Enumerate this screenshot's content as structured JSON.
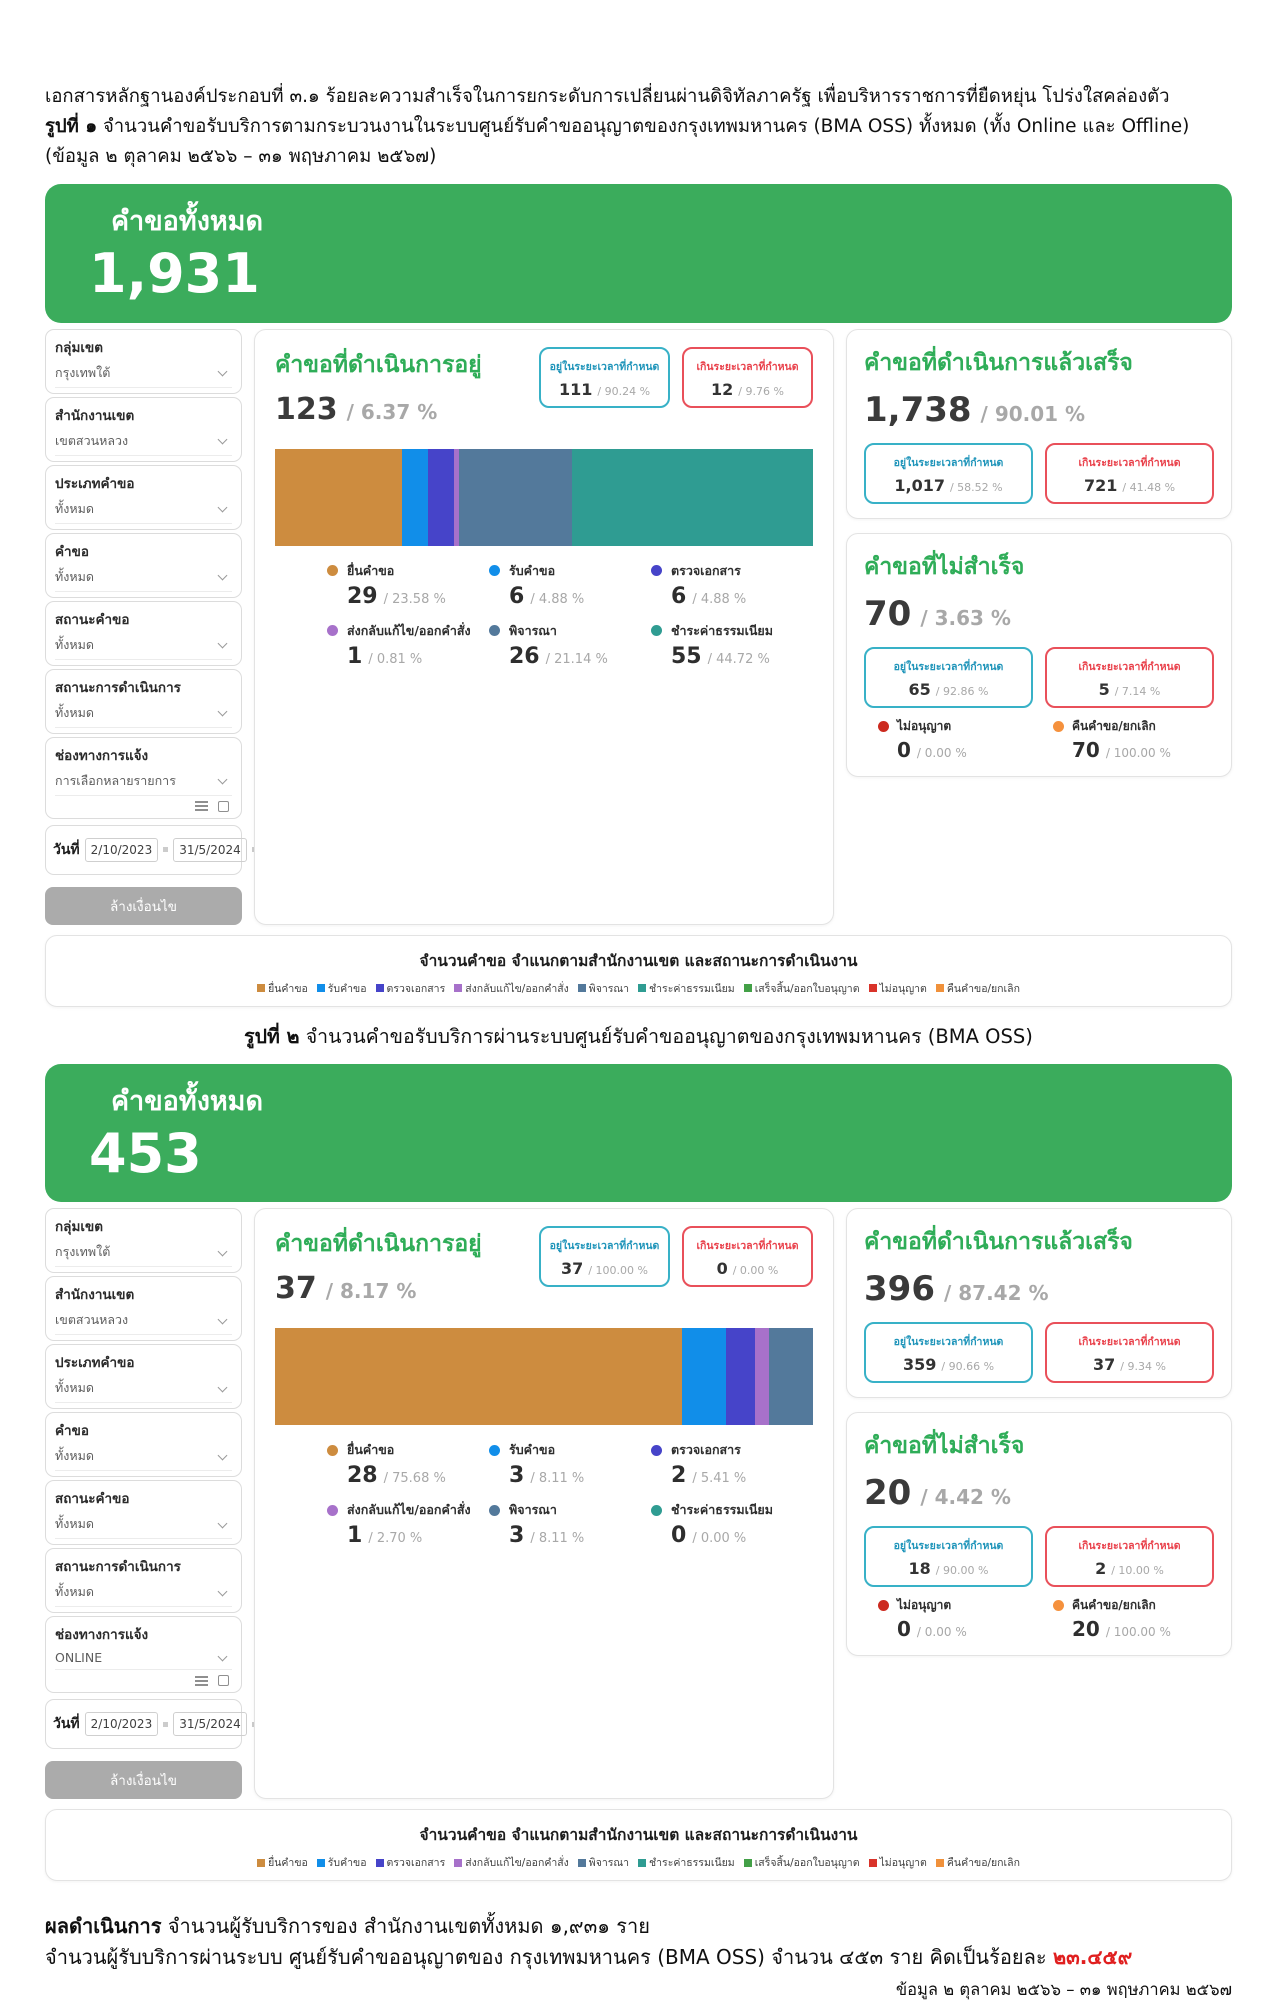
{
  "header": {
    "line1": "เอกสารหลักฐานองค์ประกอบที่ ๓.๑ ร้อยละความสำเร็จในการยกระดับการเปลี่ยนผ่านดิจิทัลภาครัฐ เพื่อบริหารราชการที่ยืดหยุ่น โปร่งใสคล่องตัว",
    "fig1_label": "รูปที่ ๑",
    "fig1_caption": " จำนวนคำขอรับบริการตามกระบวนงานในระบบศูนย์รับคำขออนุญาตของกรุงเทพมหานคร (BMA OSS) ทั้งหมด (ทั้ง Online และ Offline)",
    "fig1_caption2": "(ข้อมูล ๒ ตุลาคม ๒๕๖๖ – ๓๑ พฤษภาคม ๒๕๖๗)",
    "fig2_label": "รูปที่ ๒",
    "fig2_caption": " จำนวนคำขอรับบริการผ่านระบบศูนย์รับคำขออนุญาตของกรุงเทพมหานคร (BMA OSS)"
  },
  "district_chart": {
    "title": "จำนวนคำขอ  จำแนกตามสำนักงานเขต และสถานะการดำเนินงาน",
    "legend": [
      {
        "label": "ยื่นคำขอ",
        "color": "#cd8c3f"
      },
      {
        "label": "รับคำขอ",
        "color": "#118ee9"
      },
      {
        "label": "ตรวจเอกสาร",
        "color": "#4644c9"
      },
      {
        "label": "ส่งกลับแก้ไข/ออกคำสั่ง",
        "color": "#a771ca"
      },
      {
        "label": "พิจารณา",
        "color": "#53799b"
      },
      {
        "label": "ชำระค่าธรรมเนียม",
        "color": "#2f9c92"
      },
      {
        "label": "เสร็จสิ้น/ออกใบอนุญาต",
        "color": "#43a047"
      },
      {
        "label": "ไม่อนุญาต",
        "color": "#d9332a"
      },
      {
        "label": "คืนคำขอ/ยกเลิก",
        "color": "#f0913b"
      }
    ]
  },
  "figures": [
    {
      "banner": {
        "title": "คำขอทั้งหมด",
        "total": "1,931"
      },
      "filters": [
        {
          "label": "กลุ่มเขต",
          "value": "กรุงเทพใต้"
        },
        {
          "label": "สำนักงานเขต",
          "value": "เขตสวนหลวง"
        },
        {
          "label": "ประเภทคำขอ",
          "value": "ทั้งหมด"
        },
        {
          "label": "คำขอ",
          "value": "ทั้งหมด"
        },
        {
          "label": "สถานะคำขอ",
          "value": "ทั้งหมด"
        },
        {
          "label": "สถานะการดำเนินการ",
          "value": "ทั้งหมด"
        },
        {
          "label": "ช่องทางการแจ้ง",
          "value": "การเลือกหลายรายการ"
        }
      ],
      "date": {
        "label": "วันที่",
        "from": "2/10/2023",
        "to": "31/5/2024"
      },
      "clear_button": "ล้างเงื่อนไข",
      "in_progress": {
        "title": "คำขอที่ดำเนินการอยู่",
        "count": "123",
        "pct": "/ 6.37 %",
        "on_time": {
          "label": "อยู่ในระยะเวลาที่กำหนด",
          "count": "111",
          "pct": "/ 90.24 %"
        },
        "overdue": {
          "label": "เกินระยะเวลาที่กำหนด",
          "count": "12",
          "pct": "/ 9.76 %"
        }
      },
      "completed": {
        "title": "คำขอที่ดำเนินการแล้วเสร็จ",
        "count": "1,738",
        "pct": "/ 90.01 %",
        "on_time": {
          "label": "อยู่ในระยะเวลาที่กำหนด",
          "count": "1,017",
          "pct": "/ 58.52 %"
        },
        "overdue": {
          "label": "เกินระยะเวลาที่กำหนด",
          "count": "721",
          "pct": "/ 41.48 %"
        }
      },
      "unsuccessful": {
        "title": "คำขอที่ไม่สำเร็จ",
        "count": "70",
        "pct": "/ 3.63 %",
        "on_time": {
          "label": "อยู่ในระยะเวลาที่กำหนด",
          "count": "65",
          "pct": "/ 92.86 %"
        },
        "overdue": {
          "label": "เกินระยะเวลาที่กำหนด",
          "count": "5",
          "pct": "/ 7.14 %"
        },
        "not_allowed": {
          "label": "ไม่อนุญาต",
          "count": "0",
          "pct": "/ 0.00 %",
          "color": "#cc2a1f"
        },
        "returned": {
          "label": "คืนคำขอ/ยกเลิก",
          "count": "70",
          "pct": "/ 100.00 %",
          "color": "#f5913d"
        }
      },
      "bar": [
        {
          "label": "ยื่นคำขอ",
          "width": "23.58%",
          "color": "#cd8c3f"
        },
        {
          "label": "รับคำขอ",
          "width": "4.88%",
          "color": "#118ee9"
        },
        {
          "label": "ตรวจเอกสาร",
          "width": "4.88%",
          "color": "#4644c9"
        },
        {
          "label": "ส่งกลับแก้ไข/ออกคำสั่ง",
          "width": "0.81%",
          "color": "#a771ca"
        },
        {
          "label": "พิจารณา",
          "width": "21.14%",
          "color": "#53799b"
        },
        {
          "label": "ชำระค่าธรรมเนียม",
          "width": "44.72%",
          "color": "#2f9c92"
        }
      ],
      "legend": [
        {
          "label": "ยื่นคำขอ",
          "count": "29",
          "pct": "/ 23.58 %",
          "color": "#cd8c3f"
        },
        {
          "label": "รับคำขอ",
          "count": "6",
          "pct": "/ 4.88 %",
          "color": "#118ee9"
        },
        {
          "label": "ตรวจเอกสาร",
          "count": "6",
          "pct": "/ 4.88 %",
          "color": "#4644c9"
        },
        {
          "label": "ส่งกลับแก้ไข/ออกคำสั่ง",
          "count": "1",
          "pct": "/ 0.81 %",
          "color": "#a771ca"
        },
        {
          "label": "พิจารณา",
          "count": "26",
          "pct": "/ 21.14 %",
          "color": "#53799b"
        },
        {
          "label": "ชำระค่าธรรมเนียม",
          "count": "55",
          "pct": "/ 44.72 %",
          "color": "#2f9c92"
        }
      ]
    },
    {
      "banner": {
        "title": "คำขอทั้งหมด",
        "total": "453"
      },
      "filters": [
        {
          "label": "กลุ่มเขต",
          "value": "กรุงเทพใต้"
        },
        {
          "label": "สำนักงานเขต",
          "value": "เขตสวนหลวง"
        },
        {
          "label": "ประเภทคำขอ",
          "value": "ทั้งหมด"
        },
        {
          "label": "คำขอ",
          "value": "ทั้งหมด"
        },
        {
          "label": "สถานะคำขอ",
          "value": "ทั้งหมด"
        },
        {
          "label": "สถานะการดำเนินการ",
          "value": "ทั้งหมด"
        },
        {
          "label": "ช่องทางการแจ้ง",
          "value": "ONLINE"
        }
      ],
      "date": {
        "label": "วันที่",
        "from": "2/10/2023",
        "to": "31/5/2024"
      },
      "clear_button": "ล้างเงื่อนไข",
      "in_progress": {
        "title": "คำขอที่ดำเนินการอยู่",
        "count": "37",
        "pct": "/ 8.17 %",
        "on_time": {
          "label": "อยู่ในระยะเวลาที่กำหนด",
          "count": "37",
          "pct": "/ 100.00 %"
        },
        "overdue": {
          "label": "เกินระยะเวลาที่กำหนด",
          "count": "0",
          "pct": "/ 0.00 %"
        }
      },
      "completed": {
        "title": "คำขอที่ดำเนินการแล้วเสร็จ",
        "count": "396",
        "pct": "/ 87.42 %",
        "on_time": {
          "label": "อยู่ในระยะเวลาที่กำหนด",
          "count": "359",
          "pct": "/ 90.66 %"
        },
        "overdue": {
          "label": "เกินระยะเวลาที่กำหนด",
          "count": "37",
          "pct": "/ 9.34 %"
        }
      },
      "unsuccessful": {
        "title": "คำขอที่ไม่สำเร็จ",
        "count": "20",
        "pct": "/ 4.42 %",
        "on_time": {
          "label": "อยู่ในระยะเวลาที่กำหนด",
          "count": "18",
          "pct": "/ 90.00 %"
        },
        "overdue": {
          "label": "เกินระยะเวลาที่กำหนด",
          "count": "2",
          "pct": "/ 10.00 %"
        },
        "not_allowed": {
          "label": "ไม่อนุญาต",
          "count": "0",
          "pct": "/ 0.00 %",
          "color": "#cc2a1f"
        },
        "returned": {
          "label": "คืนคำขอ/ยกเลิก",
          "count": "20",
          "pct": "/ 100.00 %",
          "color": "#f5913d"
        }
      },
      "bar": [
        {
          "label": "ยื่นคำขอ",
          "width": "75.68%",
          "color": "#cd8c3f"
        },
        {
          "label": "รับคำขอ",
          "width": "8.11%",
          "color": "#118ee9"
        },
        {
          "label": "ตรวจเอกสาร",
          "width": "5.41%",
          "color": "#4644c9"
        },
        {
          "label": "ส่งกลับแก้ไข/ออกคำสั่ง",
          "width": "2.70%",
          "color": "#a771ca"
        },
        {
          "label": "พิจารณา",
          "width": "8.11%",
          "color": "#53799b"
        },
        {
          "label": "ชำระค่าธรรมเนียม",
          "width": "0%",
          "color": "#2f9c92"
        }
      ],
      "legend": [
        {
          "label": "ยื่นคำขอ",
          "count": "28",
          "pct": "/ 75.68 %",
          "color": "#cd8c3f"
        },
        {
          "label": "รับคำขอ",
          "count": "3",
          "pct": "/ 8.11 %",
          "color": "#118ee9"
        },
        {
          "label": "ตรวจเอกสาร",
          "count": "2",
          "pct": "/ 5.41 %",
          "color": "#4644c9"
        },
        {
          "label": "ส่งกลับแก้ไข/ออกคำสั่ง",
          "count": "1",
          "pct": "/ 2.70 %",
          "color": "#a771ca"
        },
        {
          "label": "พิจารณา",
          "count": "3",
          "pct": "/ 8.11 %",
          "color": "#53799b"
        },
        {
          "label": "ชำระค่าธรรมเนียม",
          "count": "0",
          "pct": "/ 0.00 %",
          "color": "#2f9c92"
        }
      ]
    }
  ],
  "chart_data": [
    {
      "type": "bar",
      "title": "คำขอที่ดำเนินการอยู่ (ทั้งหมด 1,931)",
      "categories": [
        "ยื่นคำขอ",
        "รับคำขอ",
        "ตรวจเอกสาร",
        "ส่งกลับแก้ไข/ออกคำสั่ง",
        "พิจารณา",
        "ชำระค่าธรรมเนียม"
      ],
      "values": [
        29,
        6,
        6,
        1,
        26,
        55
      ],
      "percent": [
        23.58,
        4.88,
        4.88,
        0.81,
        21.14,
        44.72
      ],
      "total": 123
    },
    {
      "type": "bar",
      "title": "คำขอที่ดำเนินการอยู่ (ONLINE 453)",
      "categories": [
        "ยื่นคำขอ",
        "รับคำขอ",
        "ตรวจเอกสาร",
        "ส่งกลับแก้ไข/ออกคำสั่ง",
        "พิจารณา",
        "ชำระค่าธรรมเนียม"
      ],
      "values": [
        28,
        3,
        2,
        1,
        3,
        0
      ],
      "percent": [
        75.68,
        8.11,
        5.41,
        2.7,
        8.11,
        0.0
      ],
      "total": 37
    }
  ],
  "footer": {
    "heading": "ผลดำเนินการ",
    "line1_rest": " จำนวนผู้รับบริการของ สำนักงานเขตทั้งหมด ๑,๙๓๑ ราย",
    "line2_prefix": "จำนวนผู้รับบริการผ่านระบบ ศูนย์รับคำขออนุญาตของ กรุงเทพมหานคร (BMA OSS) จำนวน ๔๕๓ ราย คิดเป็นร้อยละ ",
    "line2_highlight": "๒๓.๔๕๙",
    "period": "ข้อมูล ๒ ตุลาคม ๒๕๖๖ – ๓๑ พฤษภาคม ๒๕๖๗"
  }
}
